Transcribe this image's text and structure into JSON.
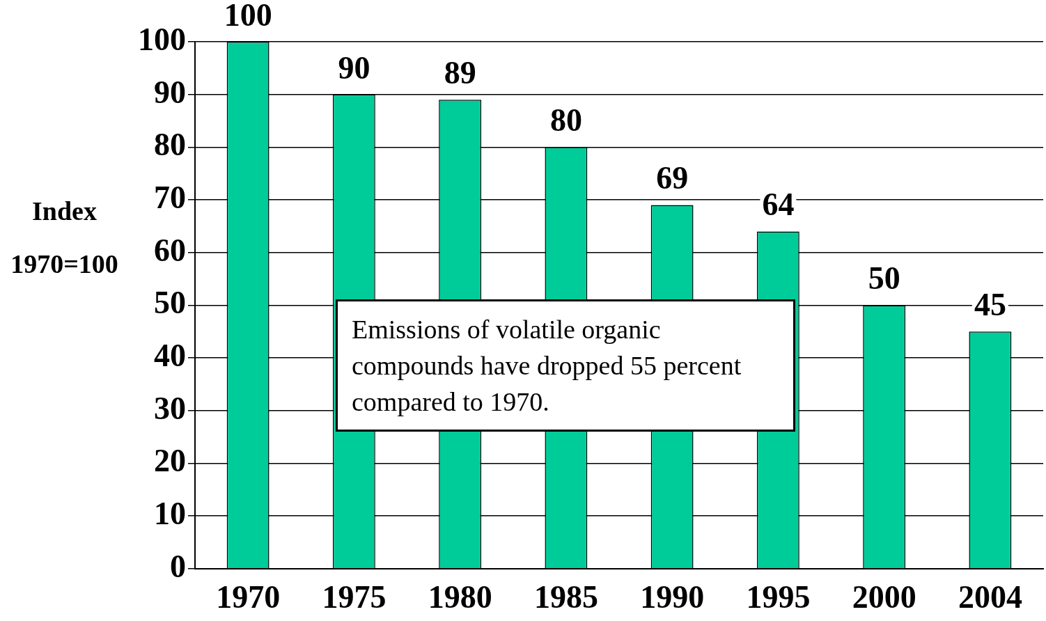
{
  "chart_data": {
    "type": "bar",
    "ylabel": "Index\n1970=100",
    "categories": [
      "1970",
      "1975",
      "1980",
      "1985",
      "1990",
      "1995",
      "2000",
      "2004"
    ],
    "values": [
      100,
      90,
      89,
      80,
      69,
      64,
      50,
      45
    ],
    "color": "#00cc99",
    "ylim": [
      0,
      100
    ],
    "yticks": [
      0,
      10,
      20,
      30,
      40,
      50,
      60,
      70,
      80,
      90,
      100
    ],
    "grid": "y",
    "data_labels": true,
    "annotations": [
      "Emissions of volatile organic compounds have dropped 55 percent compared to 1970."
    ]
  }
}
